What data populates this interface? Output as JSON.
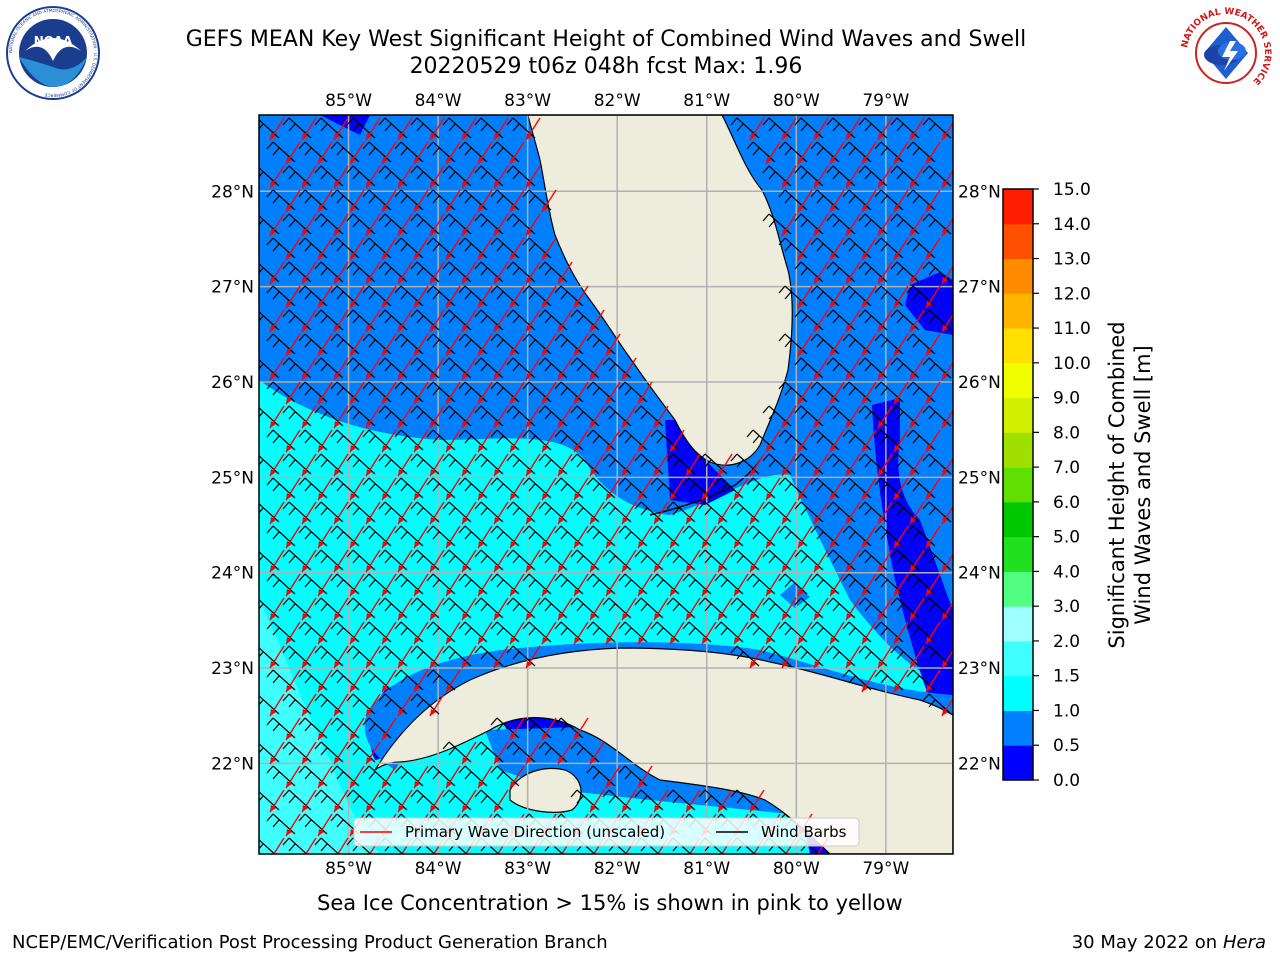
{
  "header": {
    "title_line1": "GEFS MEAN Key West Significant Height of Combined Wind Waves and Swell",
    "title_line2": "20220529 t06z 048h fcst   Max: 1.96"
  },
  "logos": {
    "left": {
      "icon": "noaa-logo",
      "text": "NOAA",
      "ring_text": "NATIONAL OCEANIC AND ATMOSPHERIC ADMINISTRATION · U.S. DEPARTMENT OF COMMERCE"
    },
    "right": {
      "icon": "nws-logo",
      "ring_text": "NATIONAL WEATHER SERVICE"
    }
  },
  "map": {
    "lon_labels": [
      "85°W",
      "84°W",
      "83°W",
      "82°W",
      "81°W",
      "80°W",
      "79°W"
    ],
    "lat_labels": [
      "28°N",
      "27°N",
      "26°N",
      "25°N",
      "24°N",
      "23°N",
      "22°N"
    ],
    "lon_extent": [
      -86.0,
      -78.25
    ],
    "lat_extent": [
      21.05,
      28.8
    ],
    "colors": {
      "land": "#eeecdc",
      "ocean_low": "#0000ff",
      "ocean_mid": "#0080ff",
      "ocean_high": "#00ffff",
      "wave_arrow": "#ff0000",
      "wind_barb": "#000000",
      "grid": "#b0b0b0"
    }
  },
  "legend": {
    "wave_label": "Primary Wave Direction (unscaled)",
    "barb_label": "Wind Barbs"
  },
  "colorbar": {
    "label_line1": "Significant Height of Combined",
    "label_line2": "Wind Waves and Swell [m]",
    "ticks": [
      "0.0",
      "0.5",
      "1.0",
      "1.5",
      "2.0",
      "3.0",
      "4.0",
      "5.0",
      "6.0",
      "7.0",
      "8.0",
      "9.0",
      "10.0",
      "11.0",
      "12.0",
      "13.0",
      "14.0",
      "15.0"
    ],
    "colors": [
      "#0000ff",
      "#0080ff",
      "#00ffff",
      "#40ffff",
      "#a0ffff",
      "#50ff80",
      "#20e020",
      "#00c800",
      "#60e000",
      "#a0e000",
      "#d0f000",
      "#f0ff00",
      "#ffe000",
      "#ffb400",
      "#ff8c00",
      "#ff5000",
      "#ff1e00"
    ]
  },
  "footer": {
    "note": "Sea Ice Concentration > 15% is shown in pink to yellow",
    "credit": "NCEP/EMC/Verification Post Processing Product Generation Branch",
    "date": "30 May 2022 on",
    "host": "Hera"
  }
}
